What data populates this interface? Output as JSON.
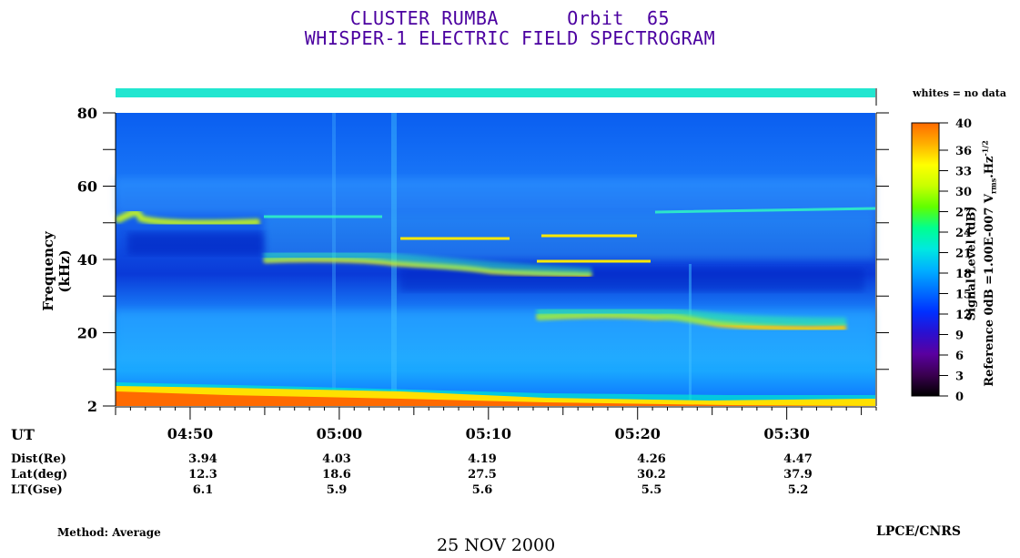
{
  "header": {
    "title_line1": "CLUSTER RUMBA      Orbit  65",
    "title_line2": "WHISPER-1 ELECTRIC FIELD SPECTROGRAM",
    "title_color": "#4b00a0"
  },
  "legend": {
    "no_data_note": "whites = no data",
    "colorbar_label_line1": "Signal Level (dB)",
    "colorbar_label_line2": "Reference 0dB =1.00E-007 V",
    "colorbar_label_sub": "rms",
    "colorbar_label_tail": ".Hz",
    "colorbar_label_exp": "-1/2"
  },
  "footer": {
    "method": "Method: Average",
    "date": "25 NOV 2000",
    "institution": "LPCE/CNRS"
  },
  "ephemeris": {
    "ut_label": "UT",
    "rows": [
      {
        "label": "Dist(Re)",
        "values": [
          "3.94",
          "4.03",
          "4.19",
          "4.26",
          "4.47"
        ]
      },
      {
        "label": "Lat(deg)",
        "values": [
          "12.3",
          "18.6",
          "27.5",
          "30.2",
          "37.9"
        ]
      },
      {
        "label": "LT(Gse)",
        "values": [
          "6.1",
          "5.9",
          "5.6",
          "5.5",
          "5.2"
        ]
      }
    ]
  },
  "chart_data": {
    "type": "heatmap",
    "ylabel": "Frequency (kHz)",
    "ylim": [
      0,
      80
    ],
    "y_tick_labels": [
      "2",
      "20",
      "40",
      "60",
      "80"
    ],
    "y_tick_values": [
      2,
      20,
      40,
      60,
      80
    ],
    "x_tick_labels": [
      "04:50",
      "05:00",
      "05:10",
      "05:20",
      "05:30"
    ],
    "colorbar_ticks": [
      "0",
      "3",
      "6",
      "9",
      "12",
      "15",
      "18",
      "21",
      "24",
      "27",
      "30",
      "33",
      "36",
      "40"
    ],
    "colorbar_range_db": [
      0,
      40
    ],
    "colorscale": [
      "#000000",
      "#3a0050",
      "#5a00a0",
      "#2a10d0",
      "#0030ff",
      "#0070ff",
      "#00b0ff",
      "#00e8e0",
      "#00ff90",
      "#60ff00",
      "#c8ff00",
      "#ffff00",
      "#ffb000",
      "#ff6a00"
    ],
    "features": [
      {
        "name": "plasma line upper",
        "x_start": "04:45",
        "x_end": "05:00",
        "freq_khz_start": 51,
        "freq_khz_end": 50
      },
      {
        "name": "band 40 kHz",
        "x_start": "04:55",
        "x_end": "05:13",
        "freq_khz_start": 41,
        "freq_khz_end": 37
      },
      {
        "name": "band 24 kHz",
        "x_start": "05:13",
        "x_end": "05:33",
        "freq_khz_start": 26,
        "freq_khz_end": 21
      },
      {
        "name": "low-frequency emission",
        "x_start": "04:45",
        "x_end": "05:35",
        "freq_khz_start": 4,
        "freq_khz_end": 2
      }
    ],
    "no_data_bar_color": "#22e6d0"
  }
}
